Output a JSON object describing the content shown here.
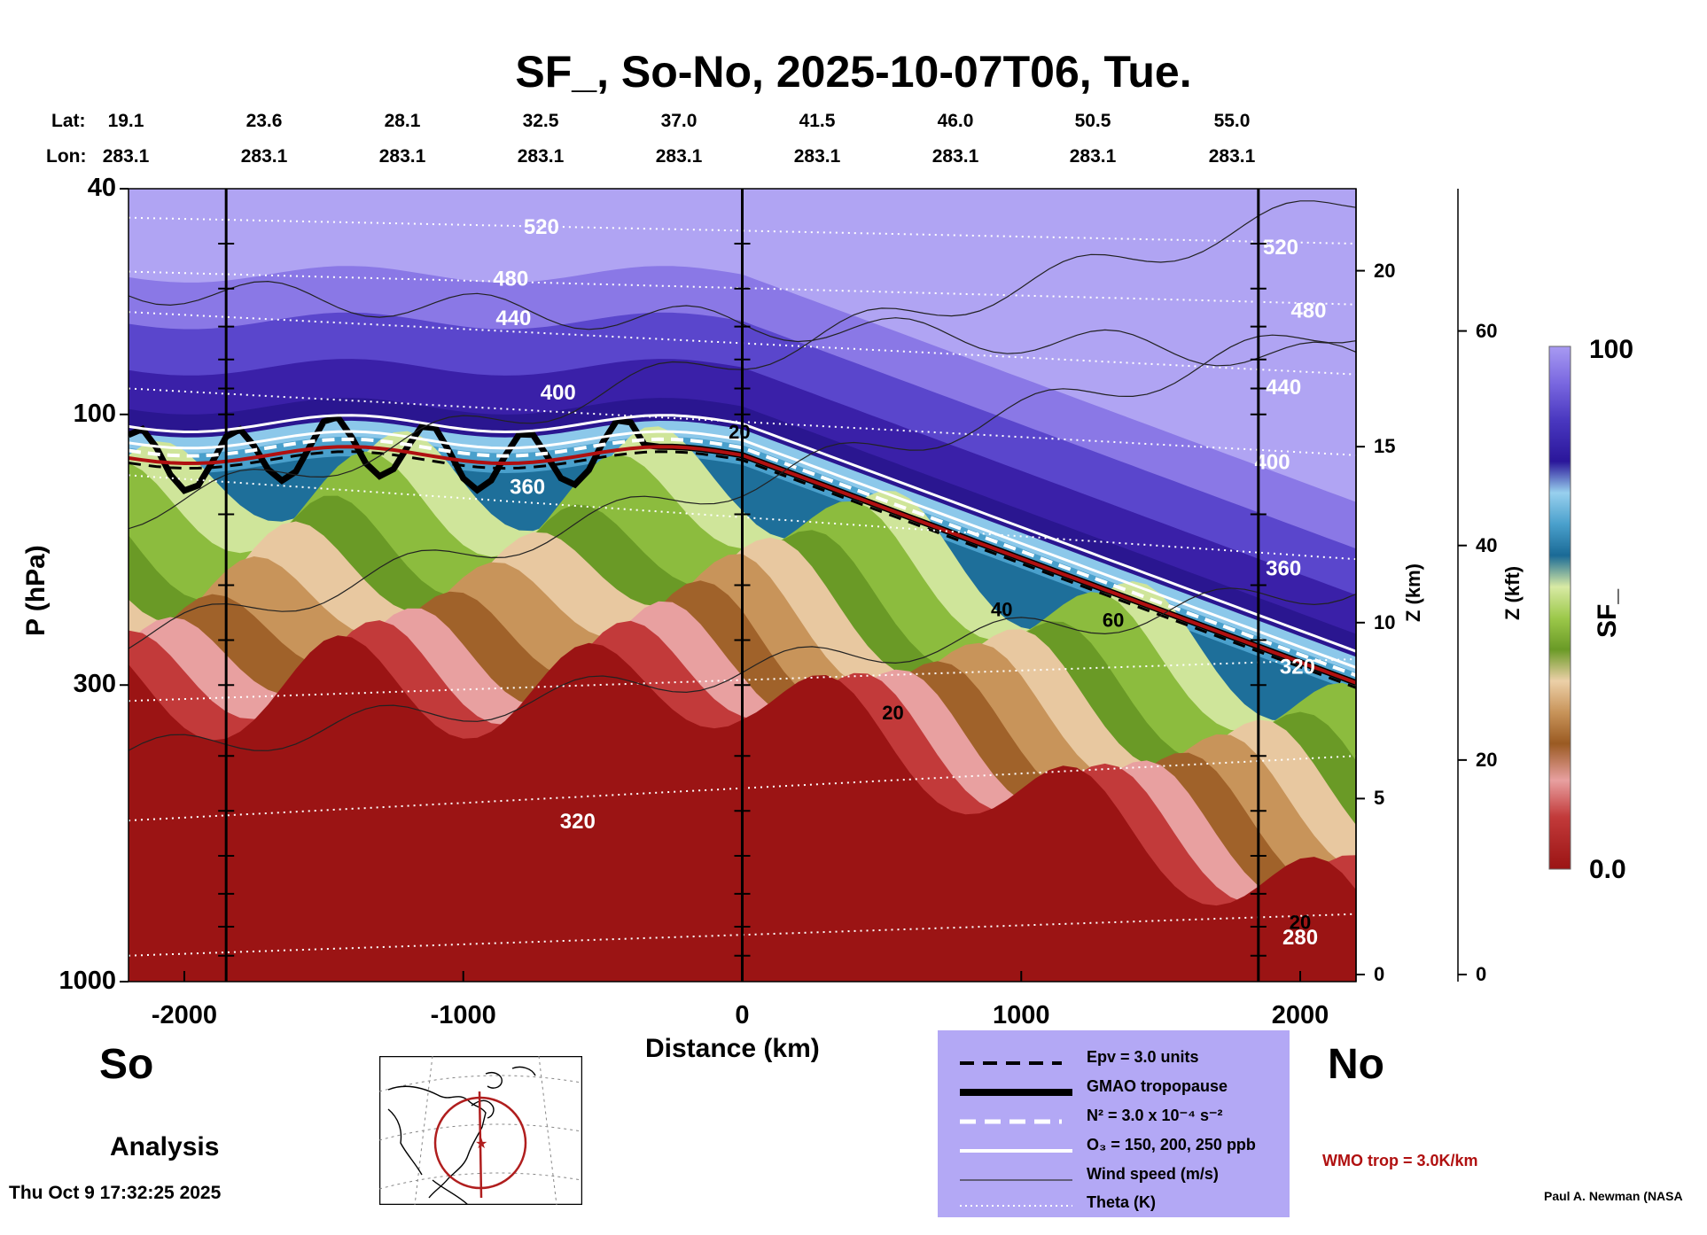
{
  "chart_data": {
    "type": "heatmap",
    "title": "SF_, So-No, 2025-10-07T06, Tue.",
    "xlabel": "Distance (km)",
    "ylabel": "P (hPa)",
    "y2label": "Z (km)",
    "y3label": "Z (kft)",
    "colorbar_label": "SF_",
    "xlim": [
      -2200,
      2200
    ],
    "ylim": [
      1000,
      40
    ],
    "y_scale": "log",
    "x_ticks": [
      "-2000",
      "-1000",
      "0",
      "1000",
      "2000"
    ],
    "x_tick_values": [
      -2000,
      -1000,
      0,
      1000,
      2000
    ],
    "y_ticks": [
      "40",
      "100",
      "300",
      "1000"
    ],
    "y_tick_values": [
      40,
      100,
      300,
      1000
    ],
    "z_km_ticks": [
      "0",
      "5",
      "10",
      "15",
      "20"
    ],
    "z_kft_ticks": [
      "0",
      "20",
      "40",
      "60"
    ],
    "colorbar_range": [
      "0.0",
      "100"
    ],
    "colorbar_colors": [
      "#9b1414",
      "#c23a3a",
      "#e38a8a",
      "#f2c6c0",
      "#a0622a",
      "#c8945a",
      "#e8c8a0",
      "#6fa02a",
      "#9cc84a",
      "#cfe59a",
      "#1e6f9a",
      "#4aa0cc",
      "#8cc8ea",
      "#2a1a9a",
      "#5a48cc",
      "#9a8ae8"
    ],
    "lat_label": "Lat:",
    "lon_label": "Lon:",
    "lat_values": [
      "19.1",
      "23.6",
      "28.1",
      "32.5",
      "37.0",
      "41.5",
      "46.0",
      "50.5",
      "55.0"
    ],
    "lon_values": [
      "283.1",
      "283.1",
      "283.1",
      "283.1",
      "283.1",
      "283.1",
      "283.1",
      "283.1",
      "283.1"
    ],
    "theta_labels": [
      {
        "text": "520",
        "x": -720,
        "p": 47
      },
      {
        "text": "480",
        "x": -830,
        "p": 58
      },
      {
        "text": "440",
        "x": -820,
        "p": 68
      },
      {
        "text": "400",
        "x": -660,
        "p": 92
      },
      {
        "text": "360",
        "x": -770,
        "p": 135
      },
      {
        "text": "320",
        "x": -590,
        "p": 525
      },
      {
        "text": "520",
        "x": 1930,
        "p": 51
      },
      {
        "text": "480",
        "x": 2030,
        "p": 66
      },
      {
        "text": "440",
        "x": 1940,
        "p": 90
      },
      {
        "text": "400",
        "x": 1900,
        "p": 122
      },
      {
        "text": "360",
        "x": 1940,
        "p": 188
      },
      {
        "text": "320",
        "x": 1990,
        "p": 280
      },
      {
        "text": "280",
        "x": 2000,
        "p": 840
      }
    ],
    "wind_labels": [
      {
        "text": "20",
        "x": -10,
        "p": 108
      },
      {
        "text": "20",
        "x": 540,
        "p": 338
      },
      {
        "text": "40",
        "x": 930,
        "p": 222
      },
      {
        "text": "60",
        "x": 1330,
        "p": 232
      },
      {
        "text": "20",
        "x": 2000,
        "p": 790
      }
    ]
  },
  "labels": {
    "so": "So",
    "no": "No",
    "analysis": "Analysis",
    "timestamp": "Thu Oct  9 17:32:25 2025",
    "credit": "Paul A. Newman (NASA",
    "wmo": "WMO trop = 3.0K/km"
  },
  "legend": [
    {
      "style": "dashed-black",
      "label": "Epv = 3.0 units"
    },
    {
      "style": "thick-black",
      "label": "GMAO tropopause"
    },
    {
      "style": "dashed-white",
      "label": "N² = 3.0 x 10⁻⁴ s⁻²"
    },
    {
      "style": "solid-white",
      "label": "O₃ = 150, 200, 250 ppb"
    },
    {
      "style": "thin-black",
      "label": "Wind speed (m/s)"
    },
    {
      "style": "dotted-white",
      "label": "Theta (K)"
    }
  ]
}
